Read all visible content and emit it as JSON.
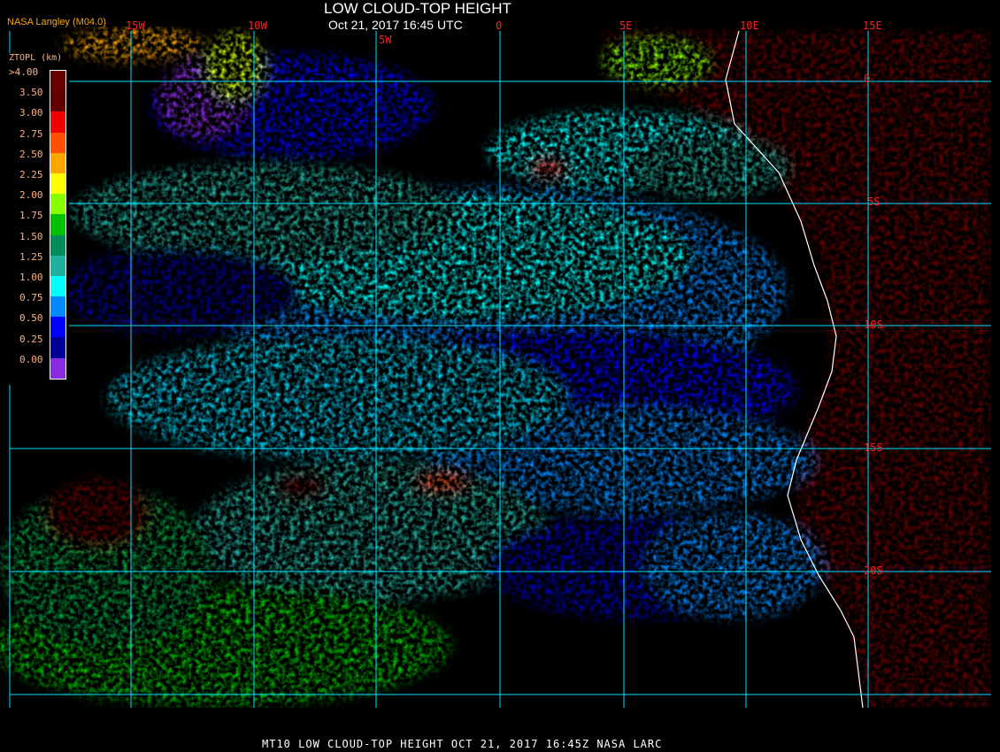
{
  "header": {
    "title": "LOW CLOUD-TOP HEIGHT",
    "subtitle": "Oct 21, 2017 16:45 UTC",
    "source": "NASA Langley (M04.0)"
  },
  "grid": {
    "longitudes": [
      "15W",
      "10W",
      "5W",
      "0",
      "5E",
      "10E",
      "15E"
    ],
    "latitudes": [
      "0",
      "5S",
      "10S",
      "15S",
      "20S"
    ],
    "line_color": "#00e0ff",
    "label_color": "#ff2020"
  },
  "legend": {
    "title": "ZTOPL (km)",
    "entries": [
      {
        "label": ">4.00",
        "color": "#6b0000"
      },
      {
        "label": "3.50",
        "color": "#600000"
      },
      {
        "label": "3.00",
        "color": "#f00000"
      },
      {
        "label": "2.75",
        "color": "#ff5000"
      },
      {
        "label": "2.50",
        "color": "#ffa500"
      },
      {
        "label": "2.25",
        "color": "#ffff00"
      },
      {
        "label": "2.00",
        "color": "#88ff00"
      },
      {
        "label": "1.75",
        "color": "#00c000"
      },
      {
        "label": "1.50",
        "color": "#008c5a"
      },
      {
        "label": "1.25",
        "color": "#20b0a0"
      },
      {
        "label": "1.00",
        "color": "#00ffff"
      },
      {
        "label": "0.75",
        "color": "#0088ff"
      },
      {
        "label": "0.50",
        "color": "#0000ff"
      },
      {
        "label": "0.25",
        "color": "#000098"
      },
      {
        "label": "0.00",
        "color": "#8a2be2"
      }
    ]
  },
  "footer": "MT10  LOW CLOUD-TOP HEIGHT   OCT 21, 2017 16:45Z   NASA LARC"
}
